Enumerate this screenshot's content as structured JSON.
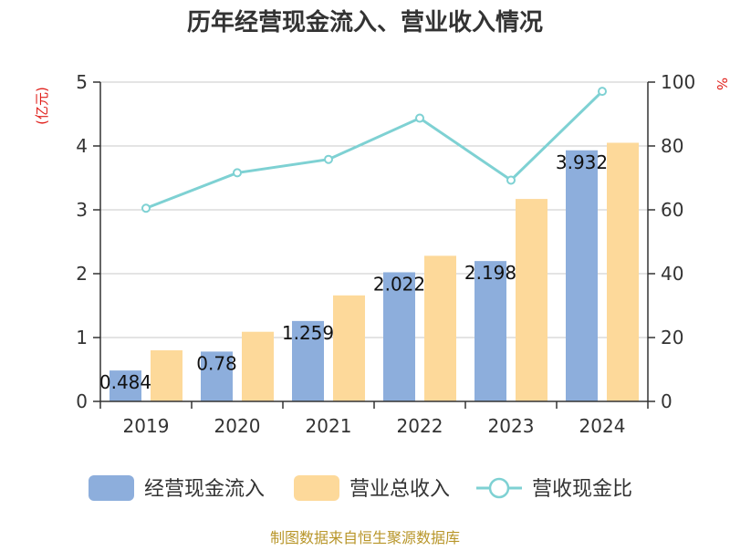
{
  "chart_data": {
    "type": "bar",
    "title": "历年经营现金流入、营业收入情况",
    "categories": [
      "2019",
      "2020",
      "2021",
      "2022",
      "2023",
      "2024"
    ],
    "left_axis": {
      "unit": "(亿元)",
      "ylim": [
        0,
        5
      ],
      "ticks": [
        0,
        1,
        2,
        3,
        4,
        5
      ]
    },
    "right_axis": {
      "unit": "%",
      "ylim": [
        0,
        100
      ],
      "ticks": [
        0,
        20,
        40,
        60,
        80,
        100
      ]
    },
    "series": [
      {
        "name": "经营现金流入",
        "type": "bar",
        "axis": "left",
        "color": "#8daedc",
        "values": [
          0.484,
          0.78,
          1.259,
          2.022,
          2.198,
          3.932
        ],
        "labels": [
          "0.484",
          "0.78",
          "1.259",
          "2.022",
          "2.198",
          "3.932"
        ]
      },
      {
        "name": "营业总收入",
        "type": "bar",
        "axis": "left",
        "color": "#fdd99a",
        "values": [
          0.8,
          1.09,
          1.66,
          2.28,
          3.17,
          4.05
        ]
      },
      {
        "name": "营收现金比",
        "type": "line",
        "axis": "right",
        "color": "#7ed1d3",
        "values": [
          60.5,
          71.6,
          75.8,
          88.7,
          69.3,
          97.1
        ]
      }
    ],
    "grid": true,
    "legend_position": "bottom"
  },
  "source": "制图数据来自恒生聚源数据库"
}
